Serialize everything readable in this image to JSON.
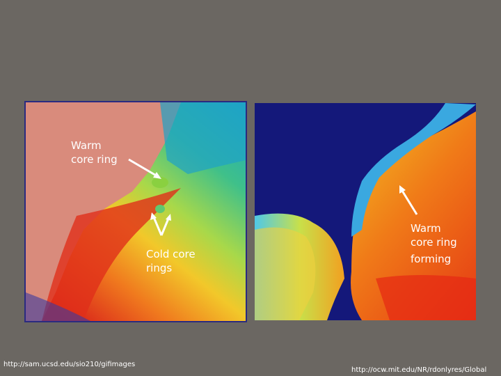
{
  "left_image": {
    "warm_label": [
      "Warm",
      "core ring"
    ],
    "cold_label": [
      "Cold core",
      "rings"
    ],
    "source": "http://sam.ucsd.edu/sio210/gifimages"
  },
  "right_image": {
    "warm_label": [
      "Warm",
      "core ring",
      "forming"
    ],
    "source": "http://ocw.mit.edu/NR/rdonlyres/Global"
  }
}
